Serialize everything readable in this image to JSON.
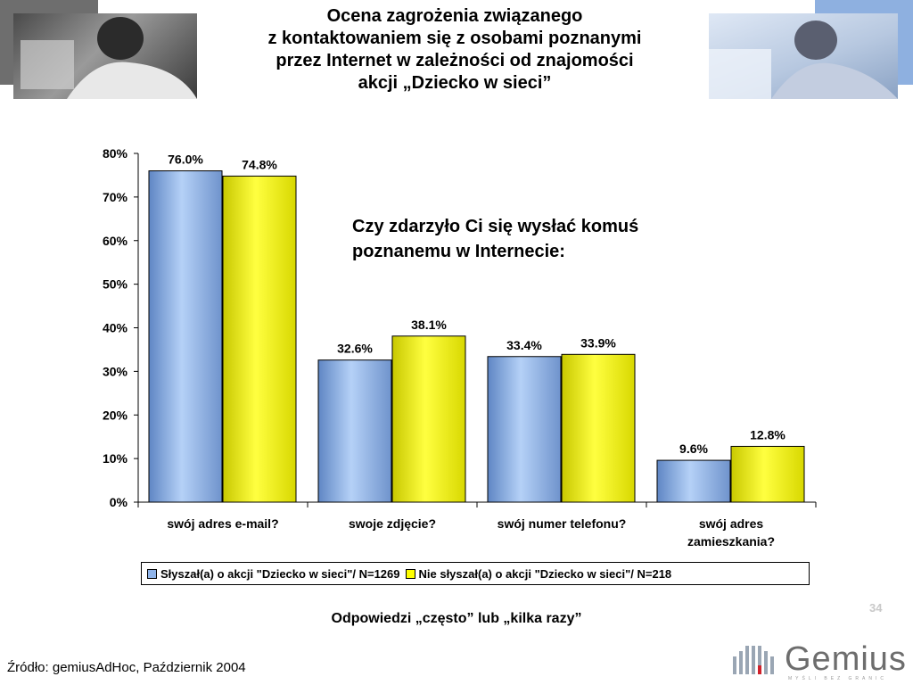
{
  "title_lines": [
    "Ocena zagrożenia związanego",
    "z kontaktowaniem się z osobami poznanymi",
    "przez Internet w zależności od znajomości",
    "akcji „Dziecko w sieci”"
  ],
  "question_lines": [
    "Czy zdarzyło Ci się wysłać komuś",
    "poznanemu w Internecie:"
  ],
  "footnote": "Odpowiedzi „często” lub „kilka razy”",
  "source": "Źródło: gemiusAdHoc, Październik 2004",
  "page_number": "34",
  "logo_text": "Gemius",
  "logo_tagline": "MYŚLI BEZ GRANIC",
  "chart_data": {
    "type": "bar",
    "categories": [
      [
        "swój adres e-mail?"
      ],
      [
        "swoje zdjęcie?"
      ],
      [
        "swój numer telefonu?"
      ],
      [
        "swój adres",
        "zamieszkania?"
      ]
    ],
    "series": [
      {
        "name": "Słyszał(a) o akcji \"Dziecko w sieci\"/ N=1269",
        "values": [
          76.0,
          32.6,
          33.4,
          9.6
        ],
        "labels": [
          "76.0%",
          "32.6%",
          "33.4%",
          "9.6%"
        ],
        "color": "#8fb4ea"
      },
      {
        "name": "Nie słyszał(a) o akcji \"Dziecko w sieci\"/ N=218",
        "values": [
          74.8,
          38.1,
          33.9,
          12.8
        ],
        "labels": [
          "74.8%",
          "38.1%",
          "33.9%",
          "12.8%"
        ],
        "color": "#ffff00"
      }
    ],
    "yticks": [
      "0%",
      "10%",
      "20%",
      "30%",
      "40%",
      "50%",
      "60%",
      "70%",
      "80%"
    ],
    "ylim": [
      0,
      80
    ],
    "legend_position": "bottom",
    "grid": false
  }
}
